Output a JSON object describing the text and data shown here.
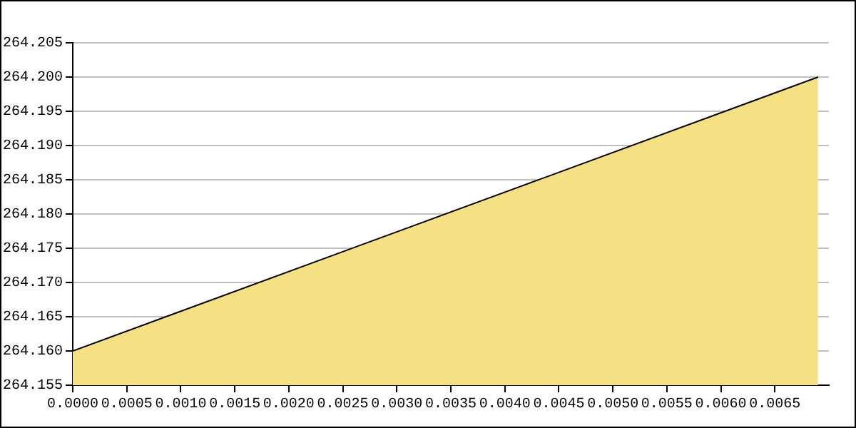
{
  "chart_data": {
    "type": "area",
    "x": [
      0,
      0.0069
    ],
    "series": [
      {
        "color": "#f5e084",
        "values": [
          264.16,
          264.2
        ]
      }
    ],
    "xlim": [
      0,
      0.007
    ],
    "xticks": [
      {
        "value": 0,
        "label": "0.0000"
      },
      {
        "value": 0.0005,
        "label": "0.0005"
      },
      {
        "value": 0.001,
        "label": "0.0010"
      },
      {
        "value": 0.0015,
        "label": "0.0015"
      },
      {
        "value": 0.002,
        "label": "0.0020"
      },
      {
        "value": 0.0025,
        "label": "0.0025"
      },
      {
        "value": 0.003,
        "label": "0.0030"
      },
      {
        "value": 0.0035,
        "label": "0.0035"
      },
      {
        "value": 0.004,
        "label": "0.0040"
      },
      {
        "value": 0.0045,
        "label": "0.0045"
      },
      {
        "value": 0.005,
        "label": "0.0050"
      },
      {
        "value": 0.0055,
        "label": "0.0055"
      },
      {
        "value": 0.006,
        "label": "0.0060"
      },
      {
        "value": 0.0065,
        "label": "0.0065"
      }
    ],
    "ylim": [
      264.155,
      264.205
    ],
    "yticks": [
      {
        "value": 264.155,
        "label": "264.155"
      },
      {
        "value": 264.16,
        "label": "264.160"
      },
      {
        "value": 264.165,
        "label": "264.165"
      },
      {
        "value": 264.17,
        "label": "264.170"
      },
      {
        "value": 264.175,
        "label": "264.175"
      },
      {
        "value": 264.18,
        "label": "264.180"
      },
      {
        "value": 264.185,
        "label": "264.185"
      },
      {
        "value": 264.19,
        "label": "264.190"
      },
      {
        "value": 264.195,
        "label": "264.195"
      },
      {
        "value": 264.2,
        "label": "264.200"
      },
      {
        "value": 264.205,
        "label": "264.205"
      }
    ],
    "grid": "y",
    "legend": false
  }
}
